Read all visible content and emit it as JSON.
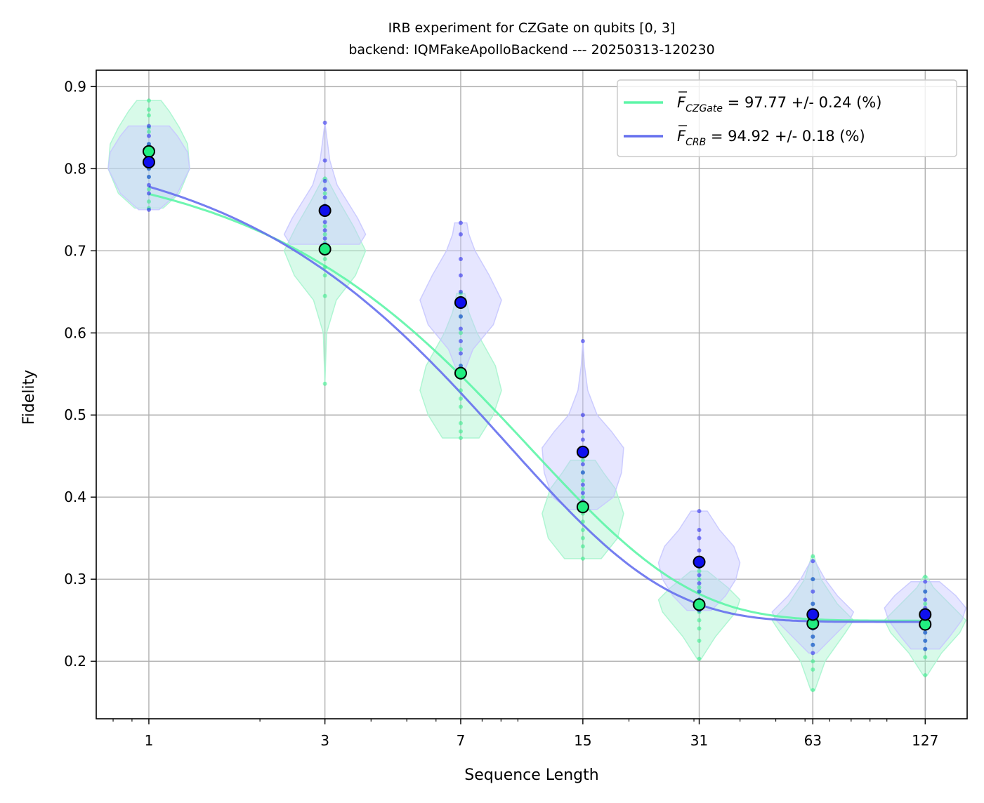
{
  "chart_data": {
    "type": "scatter",
    "title": "IRB experiment for CZGate on qubits [0, 3]",
    "subtitle": "backend: IQMFakeApolloBackend --- 20250313-120230",
    "xlabel": "Sequence Length",
    "ylabel": "Fidelity",
    "x_scale": "log",
    "xlim": [
      0.72,
      165
    ],
    "ylim": [
      0.13,
      0.92
    ],
    "x": [
      1,
      3,
      7,
      15,
      31,
      63,
      127
    ],
    "x_tick_labels": [
      "1",
      "3",
      "7",
      "15",
      "31",
      "63",
      "127"
    ],
    "y_ticks": [
      0.2,
      0.3,
      0.4,
      0.5,
      0.6,
      0.7,
      0.8,
      0.9
    ],
    "y_tick_labels": [
      "0.2",
      "0.3",
      "0.4",
      "0.5",
      "0.6",
      "0.7",
      "0.8",
      "0.9"
    ],
    "grid": true,
    "legend_position": "top-right",
    "series": [
      {
        "name": "CZGate",
        "legend_symbol": "F",
        "legend_subscript": "CZGate",
        "legend_text": " = 97.77 +/- 0.24 (%)",
        "color": "#5ef5a8",
        "marker_color": "#22ee80",
        "violin_color": "#a8f5cf",
        "means": [
          0.821,
          0.702,
          0.551,
          0.388,
          0.269,
          0.246,
          0.245
        ],
        "fit_params": {
          "A": 0.57,
          "p": 0.9118,
          "B": 0.2495
        },
        "violins": [
          {
            "min": 0.752,
            "max": 0.883,
            "widths": [
              [
                0.752,
                0.35
              ],
              [
                0.77,
                0.75
              ],
              [
                0.8,
                1.0
              ],
              [
                0.83,
                0.95
              ],
              [
                0.85,
                0.75
              ],
              [
                0.87,
                0.5
              ],
              [
                0.883,
                0.3
              ]
            ]
          },
          {
            "min": 0.538,
            "max": 0.788,
            "widths": [
              [
                0.538,
                0.0
              ],
              [
                0.6,
                0.04
              ],
              [
                0.64,
                0.28
              ],
              [
                0.67,
                0.75
              ],
              [
                0.7,
                1.0
              ],
              [
                0.73,
                0.7
              ],
              [
                0.76,
                0.35
              ],
              [
                0.788,
                0.05
              ]
            ]
          },
          {
            "min": 0.472,
            "max": 0.648,
            "widths": [
              [
                0.472,
                0.45
              ],
              [
                0.5,
                0.8
              ],
              [
                0.53,
                1.0
              ],
              [
                0.56,
                0.85
              ],
              [
                0.6,
                0.4
              ],
              [
                0.625,
                0.2
              ],
              [
                0.648,
                0.1
              ]
            ]
          },
          {
            "min": 0.325,
            "max": 0.445,
            "widths": [
              [
                0.325,
                0.45
              ],
              [
                0.35,
                0.85
              ],
              [
                0.38,
                1.0
              ],
              [
                0.41,
                0.8
              ],
              [
                0.43,
                0.5
              ],
              [
                0.445,
                0.3
              ]
            ]
          },
          {
            "min": 0.203,
            "max": 0.31,
            "widths": [
              [
                0.203,
                0.05
              ],
              [
                0.23,
                0.4
              ],
              [
                0.26,
                0.9
              ],
              [
                0.275,
                1.0
              ],
              [
                0.29,
                0.7
              ],
              [
                0.31,
                0.2
              ]
            ]
          },
          {
            "min": 0.165,
            "max": 0.328,
            "widths": [
              [
                0.165,
                0.05
              ],
              [
                0.2,
                0.3
              ],
              [
                0.235,
                0.8
              ],
              [
                0.25,
                1.0
              ],
              [
                0.27,
                0.6
              ],
              [
                0.3,
                0.2
              ],
              [
                0.328,
                0.03
              ]
            ]
          },
          {
            "min": 0.183,
            "max": 0.303,
            "widths": [
              [
                0.183,
                0.05
              ],
              [
                0.21,
                0.4
              ],
              [
                0.235,
                0.85
              ],
              [
                0.25,
                1.0
              ],
              [
                0.27,
                0.6
              ],
              [
                0.29,
                0.2
              ],
              [
                0.303,
                0.05
              ]
            ]
          }
        ],
        "samples": [
          [
            0.752,
            0.76,
            0.775,
            0.79,
            0.8,
            0.81,
            0.82,
            0.83,
            0.845,
            0.85,
            0.865,
            0.872,
            0.883
          ],
          [
            0.538,
            0.645,
            0.67,
            0.68,
            0.69,
            0.7,
            0.71,
            0.72,
            0.73,
            0.75,
            0.77,
            0.788
          ],
          [
            0.472,
            0.48,
            0.49,
            0.51,
            0.52,
            0.53,
            0.545,
            0.56,
            0.58,
            0.6,
            0.62,
            0.648
          ],
          [
            0.325,
            0.34,
            0.35,
            0.36,
            0.37,
            0.38,
            0.39,
            0.4,
            0.41,
            0.42,
            0.43,
            0.445
          ],
          [
            0.203,
            0.225,
            0.24,
            0.25,
            0.26,
            0.27,
            0.275,
            0.285,
            0.29,
            0.3,
            0.31
          ],
          [
            0.165,
            0.19,
            0.2,
            0.22,
            0.23,
            0.24,
            0.245,
            0.25,
            0.26,
            0.27,
            0.3,
            0.328
          ],
          [
            0.183,
            0.205,
            0.215,
            0.225,
            0.235,
            0.24,
            0.245,
            0.25,
            0.26,
            0.27,
            0.285,
            0.303
          ]
        ]
      },
      {
        "name": "CRB",
        "legend_symbol": "F",
        "legend_subscript": "CRB",
        "legend_text": " = 94.92 +/- 0.18 (%)",
        "color": "#6670ee",
        "marker_color": "#1010ee",
        "violin_color": "#c8c8ff",
        "means": [
          0.808,
          0.749,
          0.637,
          0.455,
          0.321,
          0.257,
          0.257
        ],
        "fit_params": {
          "A": 0.59,
          "p": 0.8985,
          "B": 0.248
        },
        "violins": [
          {
            "min": 0.75,
            "max": 0.852,
            "widths": [
              [
                0.75,
                0.25
              ],
              [
                0.77,
                0.7
              ],
              [
                0.8,
                1.0
              ],
              [
                0.82,
                0.95
              ],
              [
                0.84,
                0.7
              ],
              [
                0.852,
                0.5
              ]
            ]
          },
          {
            "min": 0.708,
            "max": 0.856,
            "widths": [
              [
                0.708,
                0.85
              ],
              [
                0.72,
                1.0
              ],
              [
                0.74,
                0.8
              ],
              [
                0.76,
                0.55
              ],
              [
                0.78,
                0.3
              ],
              [
                0.81,
                0.12
              ],
              [
                0.84,
                0.04
              ],
              [
                0.856,
                0.0
              ]
            ]
          },
          {
            "min": 0.548,
            "max": 0.734,
            "widths": [
              [
                0.548,
                0.05
              ],
              [
                0.58,
                0.3
              ],
              [
                0.61,
                0.8
              ],
              [
                0.64,
                1.0
              ],
              [
                0.67,
                0.7
              ],
              [
                0.7,
                0.35
              ],
              [
                0.72,
                0.2
              ],
              [
                0.734,
                0.15
              ]
            ]
          },
          {
            "min": 0.385,
            "max": 0.59,
            "widths": [
              [
                0.385,
                0.35
              ],
              [
                0.4,
                0.75
              ],
              [
                0.43,
                0.95
              ],
              [
                0.46,
                1.0
              ],
              [
                0.48,
                0.7
              ],
              [
                0.5,
                0.35
              ],
              [
                0.53,
                0.12
              ],
              [
                0.56,
                0.04
              ],
              [
                0.59,
                0.0
              ]
            ]
          },
          {
            "min": 0.262,
            "max": 0.383,
            "widths": [
              [
                0.262,
                0.3
              ],
              [
                0.28,
                0.65
              ],
              [
                0.3,
                0.9
              ],
              [
                0.32,
                1.0
              ],
              [
                0.34,
                0.85
              ],
              [
                0.36,
                0.5
              ],
              [
                0.383,
                0.2
              ]
            ]
          },
          {
            "min": 0.21,
            "max": 0.322,
            "widths": [
              [
                0.21,
                0.1
              ],
              [
                0.23,
                0.5
              ],
              [
                0.25,
                0.9
              ],
              [
                0.26,
                1.0
              ],
              [
                0.28,
                0.6
              ],
              [
                0.3,
                0.3
              ],
              [
                0.322,
                0.05
              ]
            ]
          },
          {
            "min": 0.215,
            "max": 0.297,
            "widths": [
              [
                0.215,
                0.35
              ],
              [
                0.23,
                0.6
              ],
              [
                0.25,
                0.9
              ],
              [
                0.265,
                1.0
              ],
              [
                0.28,
                0.75
              ],
              [
                0.297,
                0.35
              ]
            ]
          }
        ],
        "samples": [
          [
            0.75,
            0.77,
            0.78,
            0.79,
            0.8,
            0.81,
            0.82,
            0.83,
            0.84,
            0.852
          ],
          [
            0.708,
            0.715,
            0.725,
            0.735,
            0.745,
            0.755,
            0.765,
            0.775,
            0.785,
            0.81,
            0.856
          ],
          [
            0.548,
            0.56,
            0.575,
            0.59,
            0.605,
            0.62,
            0.635,
            0.65,
            0.67,
            0.69,
            0.72,
            0.734
          ],
          [
            0.385,
            0.395,
            0.405,
            0.415,
            0.43,
            0.44,
            0.45,
            0.46,
            0.47,
            0.48,
            0.5,
            0.59
          ],
          [
            0.262,
            0.275,
            0.285,
            0.295,
            0.305,
            0.315,
            0.325,
            0.335,
            0.35,
            0.36,
            0.383
          ],
          [
            0.21,
            0.22,
            0.23,
            0.24,
            0.25,
            0.26,
            0.27,
            0.285,
            0.3,
            0.322
          ],
          [
            0.215,
            0.225,
            0.235,
            0.245,
            0.255,
            0.265,
            0.275,
            0.285,
            0.297
          ]
        ]
      }
    ]
  }
}
